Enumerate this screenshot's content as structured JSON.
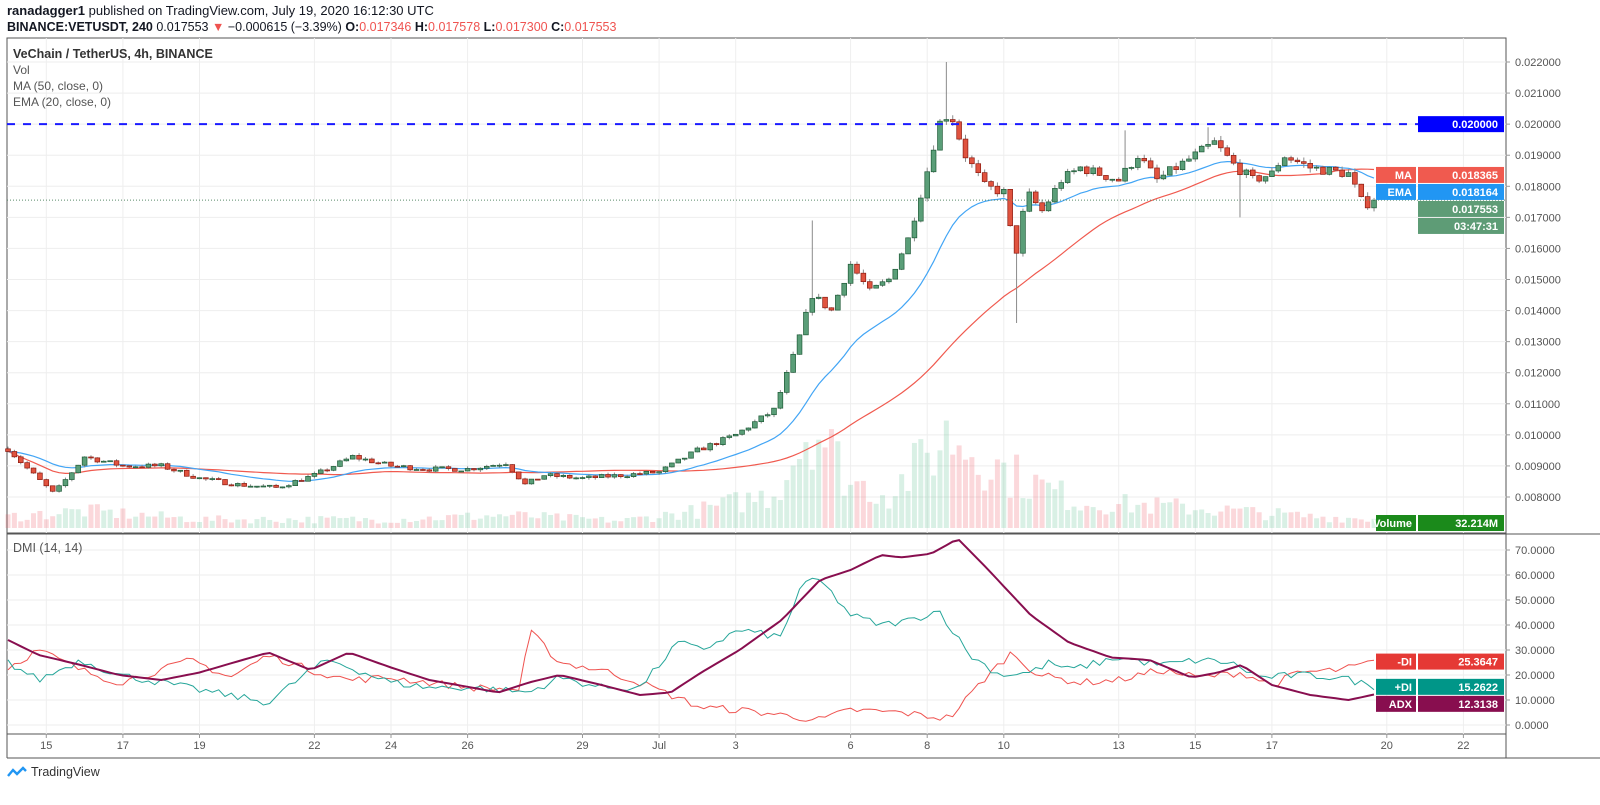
{
  "header": {
    "author": "ranadagger1",
    "published_text": "published on TradingView.com, July 19, 2020 16:12:30 UTC",
    "symbol": "BINANCE:VETUSDT, 240",
    "last": "0.017553",
    "change": "−0.000615 (−3.39%)",
    "o_label": "O:",
    "o": "0.017346",
    "h_label": "H:",
    "h": "0.017578",
    "l_label": "L:",
    "l": "0.017300",
    "c_label": "C:",
    "c": "0.017553"
  },
  "legend": {
    "title": "VeChain / TetherUS, 4h, BINANCE",
    "vol": "Vol",
    "ma": "MA (50, close, 0)",
    "ema": "EMA (20, close, 0)",
    "dmi": "DMI (14, 14)"
  },
  "price_tags": {
    "level": "0.020000",
    "ma_label": "MA",
    "ma": "0.018365",
    "ema_label": "EMA",
    "ema": "0.018164",
    "last": "0.017553",
    "countdown": "03:47:31",
    "volume_label": "Volume",
    "volume": "32.214M"
  },
  "dmi_tags": {
    "minus_label": "-DI",
    "minus": "25.3647",
    "plus_label": "+DI",
    "plus": "15.2622",
    "adx_label": "ADX",
    "adx": "12.3138"
  },
  "logo": "TradingView",
  "colors": {
    "up": "#5a9e78",
    "down": "#e0533f",
    "ma": "#f05a4f",
    "ema": "#42a5f5",
    "level": "#1a1aff",
    "adx": "#880e4f",
    "plus_di": "#26a69a",
    "minus_di": "#ef5350",
    "volume_tag": "#1b8a1b"
  },
  "chart_data": [
    {
      "type": "candlestick",
      "title": "VeChain / TetherUS, 4h, BINANCE",
      "x_unit": "days since Jun 14 2020",
      "xlim": [
        0,
        39
      ],
      "ylim": [
        0.0075,
        0.0225
      ],
      "yticks": [
        "0.022000",
        "0.021000",
        "0.020000",
        "0.019000",
        "0.018000",
        "0.017000",
        "0.016000",
        "0.015000",
        "0.014000",
        "0.013000",
        "0.012000",
        "0.011000",
        "0.010000",
        "0.009000",
        "0.008000"
      ],
      "xticks": [
        {
          "t": 1,
          "label": "15"
        },
        {
          "t": 3,
          "label": "17"
        },
        {
          "t": 5,
          "label": "19"
        },
        {
          "t": 8,
          "label": "22"
        },
        {
          "t": 10,
          "label": "24"
        },
        {
          "t": 12,
          "label": "26"
        },
        {
          "t": 15,
          "label": "29"
        },
        {
          "t": 17,
          "label": "Jul"
        },
        {
          "t": 19,
          "label": "3"
        },
        {
          "t": 22,
          "label": "6"
        },
        {
          "t": 24,
          "label": "8"
        },
        {
          "t": 26,
          "label": "10"
        },
        {
          "t": 29,
          "label": "13"
        },
        {
          "t": 31,
          "label": "15"
        },
        {
          "t": 33,
          "label": "17"
        },
        {
          "t": 36,
          "label": "20"
        },
        {
          "t": 38,
          "label": "22"
        }
      ],
      "horizontal_level": 0.02,
      "last_price": 0.017553,
      "candles_per_day": 6,
      "close_path": [
        [
          0,
          0.00955
        ],
        [
          0.6,
          0.0088
        ],
        [
          1.2,
          0.0081
        ],
        [
          1.6,
          0.0087
        ],
        [
          2.0,
          0.0093
        ],
        [
          3,
          0.009
        ],
        [
          4,
          0.009
        ],
        [
          5,
          0.0086
        ],
        [
          6,
          0.0084
        ],
        [
          7,
          0.0083
        ],
        [
          8,
          0.0087
        ],
        [
          9,
          0.0093
        ],
        [
          10,
          0.009
        ],
        [
          11,
          0.0089
        ],
        [
          12,
          0.0089
        ],
        [
          13,
          0.0091
        ],
        [
          13.5,
          0.0084
        ],
        [
          14,
          0.0087
        ],
        [
          15,
          0.0086
        ],
        [
          16,
          0.0087
        ],
        [
          17,
          0.0088
        ],
        [
          18,
          0.0095
        ],
        [
          19,
          0.01
        ],
        [
          20,
          0.0108
        ],
        [
          20.5,
          0.0125
        ],
        [
          21,
          0.0145
        ],
        [
          21.5,
          0.014
        ],
        [
          22,
          0.0155
        ],
        [
          22.5,
          0.0146
        ],
        [
          23,
          0.015
        ],
        [
          23.5,
          0.0163
        ],
        [
          24,
          0.0185
        ],
        [
          24.3,
          0.02
        ],
        [
          24.6,
          0.0204
        ],
        [
          25,
          0.019
        ],
        [
          25.5,
          0.018
        ],
        [
          26,
          0.0178
        ],
        [
          26.3,
          0.0157
        ],
        [
          26.6,
          0.0178
        ],
        [
          27,
          0.0172
        ],
        [
          27.5,
          0.0182
        ],
        [
          28,
          0.0186
        ],
        [
          29,
          0.0182
        ],
        [
          29.5,
          0.019
        ],
        [
          30,
          0.0182
        ],
        [
          30.5,
          0.0186
        ],
        [
          31,
          0.019
        ],
        [
          31.5,
          0.0194
        ],
        [
          32,
          0.0187
        ],
        [
          32.5,
          0.0182
        ],
        [
          33,
          0.0184
        ],
        [
          33.3,
          0.019
        ],
        [
          34,
          0.0186
        ],
        [
          34.5,
          0.0185
        ],
        [
          35,
          0.0184
        ],
        [
          35.4,
          0.01735
        ],
        [
          35.6,
          0.017553
        ]
      ],
      "wicks": [
        [
          21.0,
          0.0169
        ],
        [
          24.5,
          0.022
        ],
        [
          26.3,
          0.0136
        ],
        [
          29.2,
          0.0198
        ],
        [
          31.4,
          0.0199
        ],
        [
          32.2,
          0.017
        ]
      ],
      "volume_profile_M": [
        [
          0,
          40
        ],
        [
          2,
          60
        ],
        [
          5,
          30
        ],
        [
          10,
          30
        ],
        [
          13,
          45
        ],
        [
          16,
          25
        ],
        [
          18,
          60
        ],
        [
          20,
          120
        ],
        [
          21,
          380
        ],
        [
          22,
          160
        ],
        [
          23,
          120
        ],
        [
          24,
          250
        ],
        [
          24.6,
          330
        ],
        [
          26,
          200
        ],
        [
          28,
          90
        ],
        [
          31,
          70
        ],
        [
          34,
          40
        ],
        [
          35.6,
          32.214
        ]
      ],
      "series": [
        {
          "name": "MA (50, close, 0)",
          "last": 0.018365
        },
        {
          "name": "EMA (20, close, 0)",
          "last": 0.018164
        },
        {
          "name": "Volume",
          "last": "32.214M"
        }
      ]
    },
    {
      "type": "line",
      "title": "DMI (14, 14)",
      "ylim": [
        -3,
        76
      ],
      "yticks": [
        "70.0000",
        "60.0000",
        "50.0000",
        "40.0000",
        "30.0000",
        "20.0000",
        "10.0000",
        "0.0000"
      ],
      "series": [
        {
          "name": "ADX",
          "last": 12.3138,
          "points": [
            [
              0,
              34
            ],
            [
              0.8,
              28
            ],
            [
              1.9,
              24
            ],
            [
              2.9,
              20
            ],
            [
              4.0,
              18
            ],
            [
              5.0,
              21
            ],
            [
              6.8,
              29
            ],
            [
              7.9,
              22
            ],
            [
              8.9,
              29
            ],
            [
              10.0,
              23
            ],
            [
              11.0,
              18
            ],
            [
              12.1,
              15
            ],
            [
              12.8,
              13
            ],
            [
              13.6,
              17
            ],
            [
              14.4,
              20
            ],
            [
              15.5,
              16
            ],
            [
              16.5,
              12
            ],
            [
              17.3,
              13
            ],
            [
              18.1,
              21
            ],
            [
              19.1,
              30
            ],
            [
              20.2,
              42
            ],
            [
              21.2,
              58
            ],
            [
              22.0,
              62
            ],
            [
              22.8,
              68
            ],
            [
              23.3,
              67
            ],
            [
              24.1,
              68.5
            ],
            [
              24.8,
              74.5
            ],
            [
              25.6,
              62
            ],
            [
              26.7,
              44
            ],
            [
              27.7,
              33
            ],
            [
              28.8,
              27
            ],
            [
              29.8,
              26
            ],
            [
              30.9,
              19
            ],
            [
              31.6,
              21
            ],
            [
              32.2,
              24
            ],
            [
              33.0,
              16
            ],
            [
              34.0,
              12
            ],
            [
              35.0,
              10
            ],
            [
              35.7,
              12.3
            ]
          ]
        },
        {
          "name": "+DI",
          "last": 15.2622,
          "points": [
            [
              0,
              25
            ],
            [
              0.8,
              18
            ],
            [
              1.9,
              26
            ],
            [
              2.9,
              20
            ],
            [
              4.0,
              17
            ],
            [
              5.0,
              14
            ],
            [
              6.8,
              9
            ],
            [
              7.9,
              22
            ],
            [
              8.4,
              26
            ],
            [
              10.0,
              17
            ],
            [
              11.0,
              15
            ],
            [
              12.1,
              15
            ],
            [
              13.6,
              13
            ],
            [
              14.4,
              19
            ],
            [
              15.5,
              15
            ],
            [
              16.5,
              15
            ],
            [
              17.5,
              33
            ],
            [
              18.1,
              30
            ],
            [
              19.1,
              38
            ],
            [
              20.2,
              35
            ],
            [
              20.7,
              56
            ],
            [
              21.2,
              58
            ],
            [
              22.0,
              44
            ],
            [
              22.8,
              40
            ],
            [
              23.6,
              42
            ],
            [
              24.3,
              46
            ],
            [
              25.1,
              28
            ],
            [
              25.9,
              20
            ],
            [
              26.7,
              21
            ],
            [
              27.2,
              25
            ],
            [
              27.7,
              22
            ],
            [
              29.0,
              27
            ],
            [
              30.1,
              24
            ],
            [
              31.1,
              26
            ],
            [
              31.9,
              25
            ],
            [
              32.7,
              19
            ],
            [
              33.7,
              20
            ],
            [
              34.8,
              19
            ],
            [
              35.7,
              15.3
            ]
          ]
        },
        {
          "name": "-DI",
          "last": 25.3647,
          "points": [
            [
              0,
              23
            ],
            [
              0.8,
              30
            ],
            [
              1.9,
              22
            ],
            [
              2.9,
              17
            ],
            [
              4.0,
              22
            ],
            [
              4.8,
              26
            ],
            [
              5.8,
              19
            ],
            [
              6.8,
              28
            ],
            [
              7.9,
              22
            ],
            [
              8.9,
              18
            ],
            [
              10.0,
              19
            ],
            [
              11.0,
              17
            ],
            [
              12.1,
              15
            ],
            [
              13.4,
              14
            ],
            [
              13.6,
              38
            ],
            [
              14.4,
              25
            ],
            [
              15.5,
              22
            ],
            [
              16.5,
              17
            ],
            [
              17.3,
              12
            ],
            [
              18.1,
              7
            ],
            [
              19.1,
              6
            ],
            [
              20.2,
              4
            ],
            [
              21.2,
              2
            ],
            [
              22.0,
              6
            ],
            [
              23.3,
              5
            ],
            [
              24.3,
              3
            ],
            [
              24.6,
              3
            ],
            [
              25.4,
              17
            ],
            [
              26.2,
              29
            ],
            [
              26.9,
              20
            ],
            [
              28.0,
              17
            ],
            [
              29.0,
              18
            ],
            [
              30.1,
              22
            ],
            [
              31.1,
              19
            ],
            [
              32.2,
              21
            ],
            [
              33.0,
              16
            ],
            [
              33.7,
              21
            ],
            [
              34.8,
              22
            ],
            [
              35.7,
              25.4
            ]
          ]
        }
      ]
    }
  ]
}
